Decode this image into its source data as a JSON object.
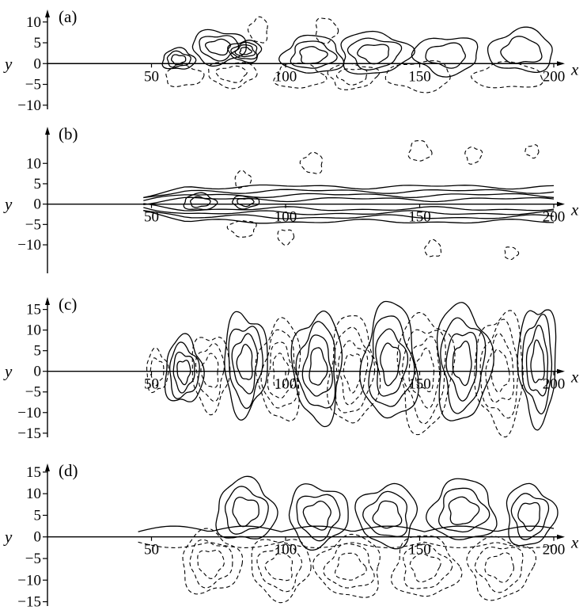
{
  "figure": {
    "axis_x_label": "x",
    "axis_y_label": "y"
  },
  "chart_data": [
    {
      "type": "contour",
      "panel_label": "(a)",
      "x_ticks": [
        50,
        100,
        150,
        200
      ],
      "y_ticks": [
        10,
        5,
        0,
        -5,
        -10
      ],
      "xlim": [
        0,
        200
      ],
      "ylim": [
        -11,
        13
      ],
      "xlabel": "x",
      "ylabel": "y",
      "positive_contours": "solid",
      "negative_contours": "dashed",
      "positive_centers": [
        {
          "x": 60,
          "y": 1,
          "rx": 6,
          "ry": 2.5,
          "levels": 3
        },
        {
          "x": 75,
          "y": 4,
          "rx": 10,
          "ry": 4,
          "levels": 3
        },
        {
          "x": 85,
          "y": 3,
          "rx": 6,
          "ry": 2.5,
          "levels": 4
        },
        {
          "x": 110,
          "y": 2,
          "rx": 11,
          "ry": 4.5,
          "levels": 3
        },
        {
          "x": 133,
          "y": 2.5,
          "rx": 13,
          "ry": 5,
          "levels": 3
        },
        {
          "x": 160,
          "y": 2,
          "rx": 12,
          "ry": 4.5,
          "levels": 2
        },
        {
          "x": 188,
          "y": 3,
          "rx": 12,
          "ry": 5,
          "levels": 2
        }
      ],
      "negative_centers": [
        {
          "x": 62,
          "y": -3,
          "rx": 7,
          "ry": 2.5,
          "levels": 1
        },
        {
          "x": 80,
          "y": -2.5,
          "rx": 9,
          "ry": 3,
          "levels": 2
        },
        {
          "x": 90,
          "y": 8,
          "rx": 3.5,
          "ry": 3,
          "levels": 1
        },
        {
          "x": 105,
          "y": -3,
          "rx": 9,
          "ry": 3,
          "levels": 1
        },
        {
          "x": 125,
          "y": -3,
          "rx": 9,
          "ry": 3,
          "levels": 2
        },
        {
          "x": 150,
          "y": -3,
          "rx": 12,
          "ry": 3.5,
          "levels": 1
        },
        {
          "x": 183,
          "y": -3,
          "rx": 13,
          "ry": 3,
          "levels": 1
        },
        {
          "x": 115,
          "y": 8,
          "rx": 4,
          "ry": 3,
          "levels": 1
        }
      ]
    },
    {
      "type": "contour",
      "panel_label": "(b)",
      "x_ticks": [
        50,
        100,
        150,
        200
      ],
      "y_ticks": [
        10,
        5,
        0,
        -5,
        -10
      ],
      "xlim": [
        0,
        200
      ],
      "ylim": [
        -17,
        19
      ],
      "xlabel": "x",
      "ylabel": "y",
      "positive_contours": "solid",
      "negative_contours": "dashed",
      "band": {
        "x_start": 47,
        "x_end": 200,
        "half_widths": [
          1.2,
          2.2,
          3.2,
          4.3
        ]
      },
      "positive_centers": [
        {
          "x": 68,
          "y": 0.5,
          "rx": 6,
          "ry": 2,
          "levels": 2
        },
        {
          "x": 85,
          "y": 0.5,
          "rx": 5,
          "ry": 1.5,
          "levels": 2
        }
      ],
      "negative_centers": [
        {
          "x": 84,
          "y": 6,
          "rx": 3,
          "ry": 2,
          "levels": 1
        },
        {
          "x": 100,
          "y": -8,
          "rx": 3,
          "ry": 1.8,
          "levels": 1
        },
        {
          "x": 110,
          "y": 10,
          "rx": 4,
          "ry": 2.5,
          "levels": 1
        },
        {
          "x": 150,
          "y": 13,
          "rx": 4,
          "ry": 2.5,
          "levels": 1
        },
        {
          "x": 170,
          "y": 12,
          "rx": 3,
          "ry": 2,
          "levels": 1
        },
        {
          "x": 192,
          "y": 13,
          "rx": 2.5,
          "ry": 1.5,
          "levels": 1
        },
        {
          "x": 155,
          "y": -11,
          "rx": 3,
          "ry": 2,
          "levels": 1
        },
        {
          "x": 184,
          "y": -12,
          "rx": 2.5,
          "ry": 1.5,
          "levels": 1
        },
        {
          "x": 84,
          "y": -6,
          "rx": 5,
          "ry": 2,
          "levels": 1
        }
      ]
    },
    {
      "type": "contour",
      "panel_label": "(c)",
      "x_ticks": [
        50,
        100,
        150,
        200
      ],
      "y_ticks": [
        15,
        10,
        5,
        0,
        -5,
        -10,
        -15
      ],
      "xlim": [
        0,
        200
      ],
      "ylim": [
        -16,
        18
      ],
      "xlabel": "x",
      "ylabel": "y",
      "positive_contours": "solid",
      "negative_contours": "dashed",
      "positive_centers": [
        {
          "x": 62,
          "y": 0,
          "rx": 7,
          "ry": 8,
          "levels": 4
        },
        {
          "x": 85,
          "y": 2,
          "rx": 8,
          "ry": 12,
          "levels": 4
        },
        {
          "x": 112,
          "y": 1,
          "rx": 9,
          "ry": 13,
          "levels": 4
        },
        {
          "x": 139,
          "y": 2,
          "rx": 10,
          "ry": 14,
          "levels": 4
        },
        {
          "x": 166,
          "y": 2,
          "rx": 10,
          "ry": 14,
          "levels": 4
        },
        {
          "x": 194,
          "y": 2,
          "rx": 7,
          "ry": 14,
          "levels": 4
        }
      ],
      "negative_centers": [
        {
          "x": 52,
          "y": 0,
          "rx": 4,
          "ry": 5,
          "levels": 2
        },
        {
          "x": 72,
          "y": 0,
          "rx": 7,
          "ry": 9,
          "levels": 3
        },
        {
          "x": 98,
          "y": 0,
          "rx": 8,
          "ry": 12,
          "levels": 4
        },
        {
          "x": 125,
          "y": 0,
          "rx": 9,
          "ry": 13,
          "levels": 4
        },
        {
          "x": 152,
          "y": 0,
          "rx": 10,
          "ry": 14,
          "levels": 4
        },
        {
          "x": 180,
          "y": 0,
          "rx": 9,
          "ry": 14,
          "levels": 4
        }
      ]
    },
    {
      "type": "contour",
      "panel_label": "(d)",
      "x_ticks": [
        50,
        100,
        150,
        200
      ],
      "y_ticks": [
        15,
        10,
        5,
        0,
        -5,
        -10,
        -15
      ],
      "xlim": [
        0,
        200
      ],
      "ylim": [
        -16,
        17
      ],
      "xlabel": "x",
      "ylabel": "y",
      "positive_contours": "solid",
      "negative_contours": "dashed",
      "positive_centers": [
        {
          "x": 85,
          "y": 6,
          "rx": 11,
          "ry": 7,
          "levels": 3
        },
        {
          "x": 112,
          "y": 5,
          "rx": 11,
          "ry": 7,
          "levels": 3
        },
        {
          "x": 138,
          "y": 5,
          "rx": 11,
          "ry": 7,
          "levels": 3
        },
        {
          "x": 166,
          "y": 6,
          "rx": 12,
          "ry": 7,
          "levels": 3
        },
        {
          "x": 191,
          "y": 5,
          "rx": 9,
          "ry": 7,
          "levels": 3
        }
      ],
      "negative_centers": [
        {
          "x": 72,
          "y": -6,
          "rx": 11,
          "ry": 7,
          "levels": 3
        },
        {
          "x": 98,
          "y": -7,
          "rx": 11,
          "ry": 7,
          "levels": 3
        },
        {
          "x": 124,
          "y": -7,
          "rx": 12,
          "ry": 7,
          "levels": 3
        },
        {
          "x": 152,
          "y": -7,
          "rx": 12,
          "ry": 7,
          "levels": 3
        },
        {
          "x": 180,
          "y": -7,
          "rx": 12,
          "ry": 7,
          "levels": 3
        }
      ],
      "boundary_curves": true
    }
  ]
}
